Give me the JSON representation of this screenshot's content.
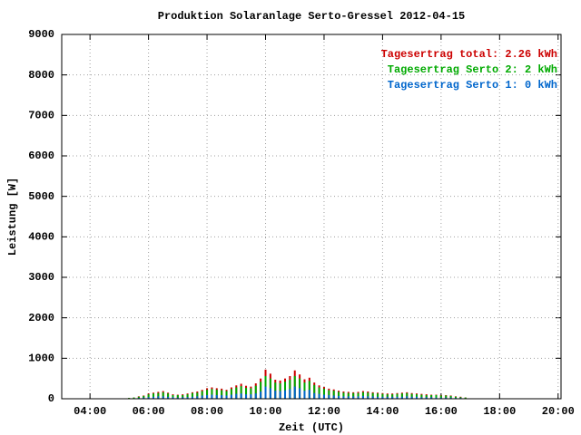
{
  "chart_data": {
    "type": "bar",
    "title": "Produktion Solaranlage Serto-Gressel 2012-04-15",
    "x_label": "Zeit (UTC)",
    "y_label": "Leistung [W]",
    "xlim": [
      "03:02",
      "20:06"
    ],
    "xticks": [
      "04:00",
      "06:00",
      "08:00",
      "10:00",
      "12:00",
      "14:00",
      "16:00",
      "18:00",
      "20:00"
    ],
    "ylim": [
      0,
      9000
    ],
    "yticks": [
      0,
      1000,
      2000,
      3000,
      4000,
      5000,
      6000,
      7000,
      8000,
      9000
    ],
    "grid": true,
    "legend": "top-right",
    "x": [
      "05:00",
      "05:10",
      "05:20",
      "05:30",
      "05:40",
      "05:50",
      "06:00",
      "06:10",
      "06:20",
      "06:30",
      "06:40",
      "06:50",
      "07:00",
      "07:10",
      "07:20",
      "07:30",
      "07:40",
      "07:50",
      "08:00",
      "08:10",
      "08:20",
      "08:30",
      "08:40",
      "08:50",
      "09:00",
      "09:10",
      "09:20",
      "09:30",
      "09:40",
      "09:50",
      "10:00",
      "10:10",
      "10:20",
      "10:30",
      "10:40",
      "10:50",
      "11:00",
      "11:10",
      "11:20",
      "11:30",
      "11:40",
      "11:50",
      "12:00",
      "12:10",
      "12:20",
      "12:30",
      "12:40",
      "12:50",
      "13:00",
      "13:10",
      "13:20",
      "13:30",
      "13:40",
      "13:50",
      "14:00",
      "14:10",
      "14:20",
      "14:30",
      "14:40",
      "14:50",
      "15:00",
      "15:10",
      "15:20",
      "15:30",
      "15:40",
      "15:50",
      "16:00",
      "16:10",
      "16:20",
      "16:30",
      "16:40",
      "16:50",
      "17:00"
    ],
    "series": [
      {
        "name": "Tagesertrag total: 2.26 kWh",
        "color": "#cc0000",
        "values": [
          0,
          10,
          20,
          30,
          60,
          80,
          130,
          150,
          170,
          190,
          150,
          110,
          100,
          110,
          130,
          160,
          180,
          220,
          260,
          280,
          260,
          250,
          220,
          280,
          330,
          370,
          320,
          300,
          380,
          500,
          720,
          620,
          470,
          450,
          500,
          560,
          700,
          600,
          480,
          520,
          400,
          330,
          290,
          250,
          230,
          200,
          180,
          170,
          160,
          170,
          190,
          180,
          160,
          150,
          140,
          130,
          130,
          140,
          150,
          160,
          140,
          130,
          120,
          110,
          100,
          100,
          90,
          90,
          80,
          60,
          50,
          30,
          10
        ]
      },
      {
        "name": "Tagesertrag Serto 2: 2 kWh",
        "color": "#00aa00",
        "values": [
          0,
          10,
          20,
          30,
          50,
          70,
          110,
          130,
          140,
          160,
          130,
          90,
          90,
          90,
          110,
          140,
          150,
          190,
          220,
          240,
          220,
          210,
          190,
          240,
          280,
          310,
          270,
          260,
          320,
          420,
          560,
          500,
          400,
          380,
          420,
          470,
          560,
          500,
          400,
          440,
          340,
          280,
          250,
          210,
          200,
          170,
          150,
          140,
          140,
          140,
          160,
          150,
          140,
          130,
          120,
          110,
          110,
          120,
          130,
          140,
          120,
          110,
          100,
          90,
          90,
          90,
          80,
          80,
          70,
          50,
          40,
          30,
          10
        ]
      },
      {
        "name": "Tagesertrag Serto 1: 0 kWh",
        "color": "#0066cc",
        "values": [
          0,
          0,
          10,
          10,
          20,
          30,
          40,
          50,
          60,
          60,
          50,
          40,
          30,
          40,
          40,
          50,
          60,
          80,
          90,
          100,
          90,
          90,
          80,
          100,
          120,
          130,
          110,
          110,
          130,
          180,
          300,
          260,
          200,
          190,
          210,
          240,
          300,
          260,
          200,
          220,
          140,
          120,
          100,
          90,
          80,
          70,
          60,
          60,
          60,
          60,
          70,
          60,
          60,
          50,
          50,
          50,
          50,
          50,
          50,
          60,
          50,
          50,
          40,
          40,
          40,
          30,
          30,
          30,
          30,
          20,
          20,
          10,
          0
        ]
      }
    ]
  }
}
